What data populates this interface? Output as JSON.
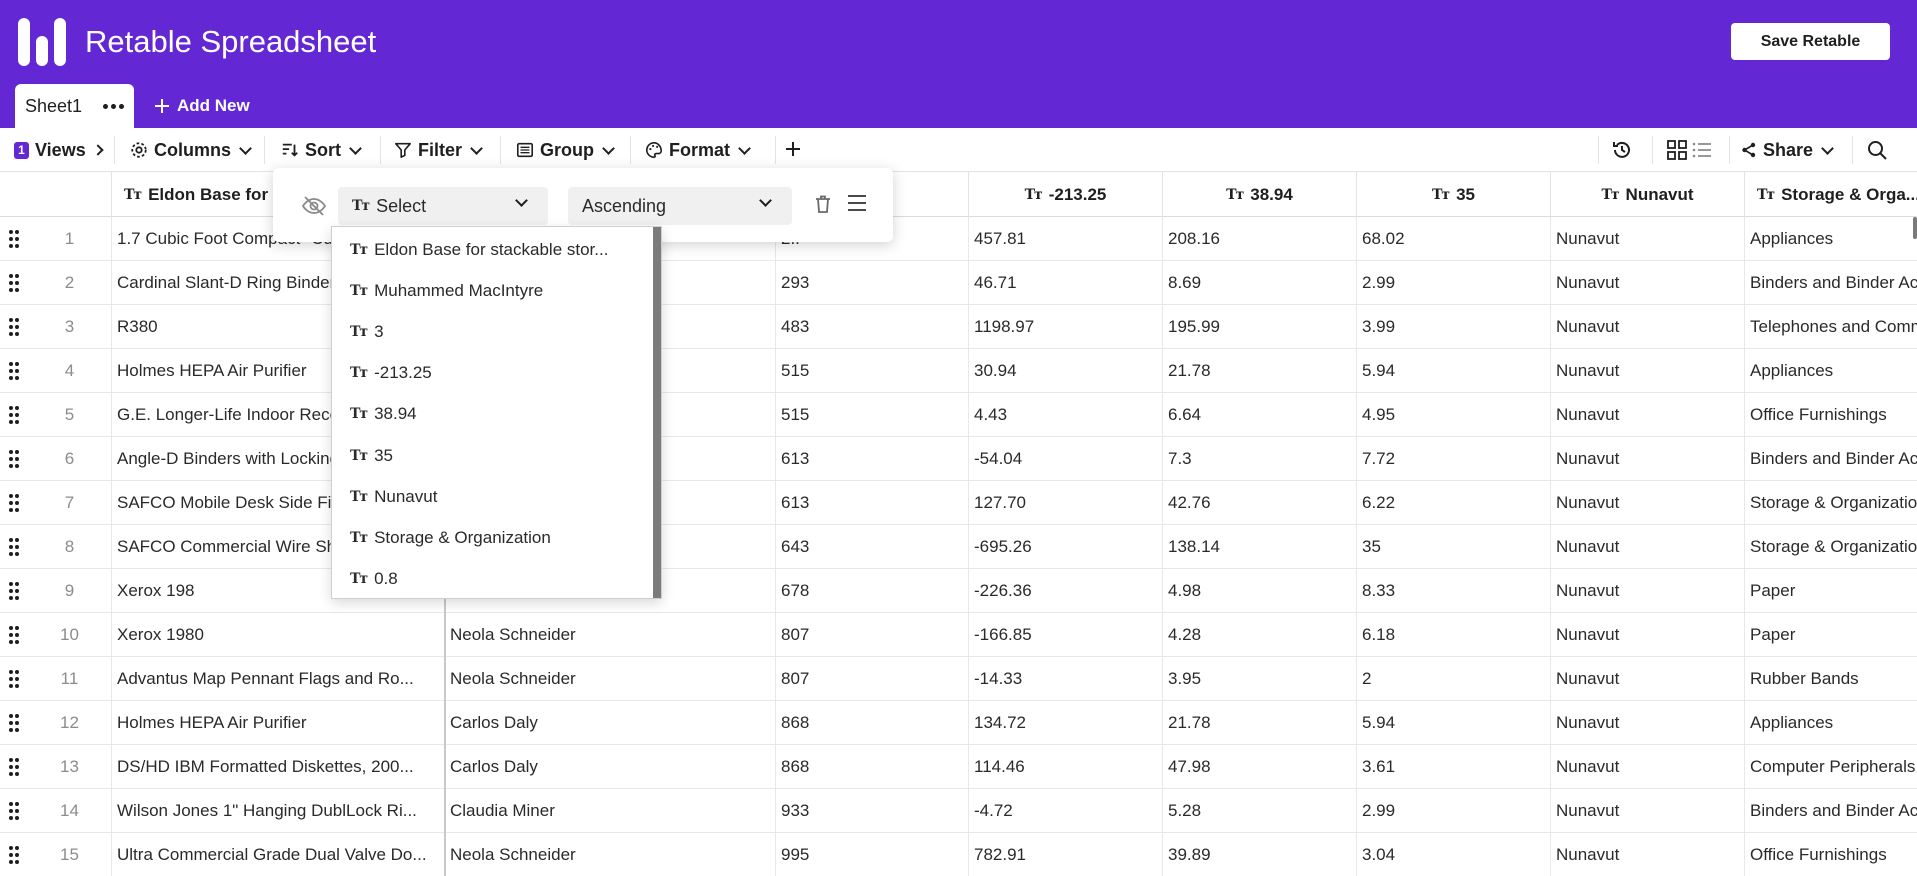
{
  "app": {
    "title": "Retable Spreadsheet",
    "save_label": "Save Retable"
  },
  "colors": {
    "brand": "#6328d4"
  },
  "sheets": [
    {
      "label": "Sheet1"
    }
  ],
  "add_new_label": "Add New",
  "toolbar": {
    "views_count": "1",
    "views_label": "Views",
    "columns_label": "Columns",
    "sort_label": "Sort",
    "filter_label": "Filter",
    "group_label": "Group",
    "format_label": "Format",
    "share_label": "Share"
  },
  "columns": [
    {
      "label": "Eldon Base for",
      "type_icon": "text-type-icon"
    },
    {
      "label": "",
      "type_icon": "text-type-icon"
    },
    {
      "label": "",
      "type_icon": "text-type-icon"
    },
    {
      "label": "-213.25",
      "type_icon": "text-type-icon"
    },
    {
      "label": "38.94",
      "type_icon": "text-type-icon"
    },
    {
      "label": "35",
      "type_icon": "text-type-icon"
    },
    {
      "label": "Nunavut",
      "type_icon": "text-type-icon"
    },
    {
      "label": "Storage & Orga...",
      "type_icon": "text-type-icon"
    }
  ],
  "rows": [
    {
      "num": "1",
      "c1": "1.7 Cubic Foot Compact \"Cu...",
      "c2": "",
      "c3": "2..",
      "c4": "457.81",
      "c5": "208.16",
      "c6": "68.02",
      "c7": "Nunavut",
      "c8": "Appliances"
    },
    {
      "num": "2",
      "c1": "Cardinal Slant-D Ring Binder...",
      "c2": "",
      "c3": "293",
      "c4": "46.71",
      "c5": "8.69",
      "c6": "2.99",
      "c7": "Nunavut",
      "c8": "Binders and Binder Acc"
    },
    {
      "num": "3",
      "c1": "R380",
      "c2": "",
      "c3": "483",
      "c4": "1198.97",
      "c5": "195.99",
      "c6": "3.99",
      "c7": "Nunavut",
      "c8": "Telephones and Comm"
    },
    {
      "num": "4",
      "c1": "Holmes HEPA Air Purifier",
      "c2": "",
      "c3": "515",
      "c4": "30.94",
      "c5": "21.78",
      "c6": "5.94",
      "c7": "Nunavut",
      "c8": "Appliances"
    },
    {
      "num": "5",
      "c1": "G.E. Longer-Life Indoor Rece...",
      "c2": "",
      "c3": "515",
      "c4": "4.43",
      "c5": "6.64",
      "c6": "4.95",
      "c7": "Nunavut",
      "c8": "Office Furnishings"
    },
    {
      "num": "6",
      "c1": "Angle-D Binders with Locking...",
      "c2": "",
      "c3": "613",
      "c4": "-54.04",
      "c5": "7.3",
      "c6": "7.72",
      "c7": "Nunavut",
      "c8": "Binders and Binder Acc"
    },
    {
      "num": "7",
      "c1": "SAFCO Mobile Desk Side Files...",
      "c2": "",
      "c3": "613",
      "c4": "127.70",
      "c5": "42.76",
      "c6": "6.22",
      "c7": "Nunavut",
      "c8": "Storage & Organization"
    },
    {
      "num": "8",
      "c1": "SAFCO Commercial Wire Shelv...",
      "c2": "",
      "c3": "643",
      "c4": "-695.26",
      "c5": "138.14",
      "c6": "35",
      "c7": "Nunavut",
      "c8": "Storage & Organization"
    },
    {
      "num": "9",
      "c1": "Xerox 198",
      "c2": "",
      "c3": "678",
      "c4": "-226.36",
      "c5": "4.98",
      "c6": "8.33",
      "c7": "Nunavut",
      "c8": "Paper"
    },
    {
      "num": "10",
      "c1": "Xerox 1980",
      "c2": "Neola Schneider",
      "c3": "807",
      "c4": "-166.85",
      "c5": "4.28",
      "c6": "6.18",
      "c7": "Nunavut",
      "c8": "Paper"
    },
    {
      "num": "11",
      "c1": "Advantus Map Pennant Flags and Ro...",
      "c2": "Neola Schneider",
      "c3": "807",
      "c4": "-14.33",
      "c5": "3.95",
      "c6": "2",
      "c7": "Nunavut",
      "c8": "Rubber Bands"
    },
    {
      "num": "12",
      "c1": "Holmes HEPA Air Purifier",
      "c2": "Carlos Daly",
      "c3": "868",
      "c4": "134.72",
      "c5": "21.78",
      "c6": "5.94",
      "c7": "Nunavut",
      "c8": "Appliances"
    },
    {
      "num": "13",
      "c1": "DS/HD IBM Formatted Diskettes, 200...",
      "c2": "Carlos Daly",
      "c3": "868",
      "c4": "114.46",
      "c5": "47.98",
      "c6": "3.61",
      "c7": "Nunavut",
      "c8": "Computer Peripherals"
    },
    {
      "num": "14",
      "c1": "Wilson Jones 1\" Hanging DublLock Ri...",
      "c2": "Claudia Miner",
      "c3": "933",
      "c4": "-4.72",
      "c5": "5.28",
      "c6": "2.99",
      "c7": "Nunavut",
      "c8": "Binders and Binder Acc"
    },
    {
      "num": "15",
      "c1": "Ultra Commercial Grade Dual Valve Do...",
      "c2": "Neola Schneider",
      "c3": "995",
      "c4": "782.91",
      "c5": "39.89",
      "c6": "3.04",
      "c7": "Nunavut",
      "c8": "Office Furnishings"
    }
  ],
  "sort_popover": {
    "field_select_value": "Select",
    "direction_value": "Ascending",
    "field_options": [
      "Eldon Base for stackable stor...",
      "Muhammed MacIntyre",
      "3",
      "-213.25",
      "38.94",
      "35",
      "Nunavut",
      "Storage & Organization",
      "0.8"
    ]
  }
}
